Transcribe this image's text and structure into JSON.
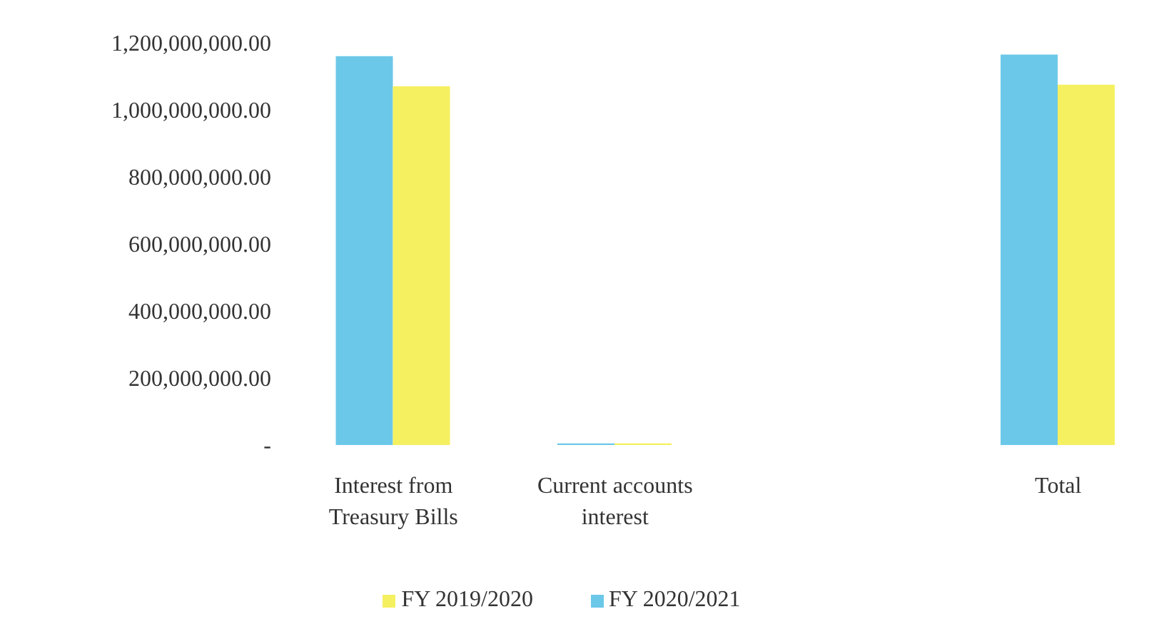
{
  "chart_data": {
    "type": "bar",
    "categories": [
      "Interest from Treasury Bills",
      "Current accounts interest",
      null,
      "Total"
    ],
    "series": [
      {
        "name": "FY 2020/2021",
        "color": "#6cc8e8",
        "values": [
          1160000000,
          5000000,
          null,
          1165000000
        ]
      },
      {
        "name": "FY 2019/2020",
        "color": "#f5f060",
        "values": [
          1070000000,
          5000000,
          null,
          1075000000
        ]
      }
    ],
    "ylim": [
      0,
      1200000000
    ],
    "yticks": [
      {
        "value": 0,
        "label": "-"
      },
      {
        "value": 200000000,
        "label": "200,000,000.00"
      },
      {
        "value": 400000000,
        "label": "400,000,000.00"
      },
      {
        "value": 600000000,
        "label": "600,000,000.00"
      },
      {
        "value": 800000000,
        "label": "800,000,000.00"
      },
      {
        "value": 1000000000,
        "label": "1,000,000,000.00"
      },
      {
        "value": 1200000000,
        "label": "1,200,000,000.00"
      }
    ],
    "grid": false,
    "legend": "bottom"
  }
}
